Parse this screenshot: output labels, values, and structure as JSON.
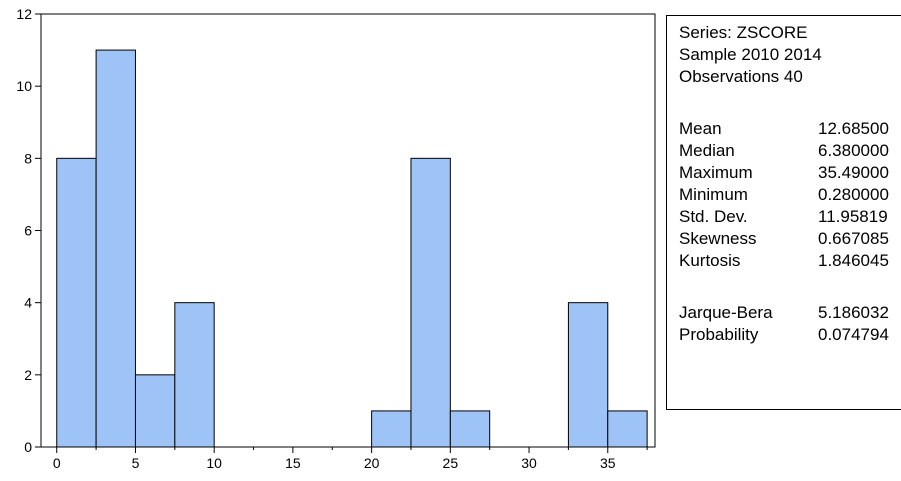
{
  "chart_data": {
    "type": "bar",
    "bin_width": 2.5,
    "bins": [
      {
        "start": 0,
        "end": 2.5,
        "count": 8
      },
      {
        "start": 2.5,
        "end": 5,
        "count": 11
      },
      {
        "start": 5,
        "end": 7.5,
        "count": 2
      },
      {
        "start": 7.5,
        "end": 10,
        "count": 4
      },
      {
        "start": 10,
        "end": 12.5,
        "count": 0
      },
      {
        "start": 12.5,
        "end": 15,
        "count": 0
      },
      {
        "start": 15,
        "end": 17.5,
        "count": 0
      },
      {
        "start": 17.5,
        "end": 20,
        "count": 0
      },
      {
        "start": 20,
        "end": 22.5,
        "count": 1
      },
      {
        "start": 22.5,
        "end": 25,
        "count": 8
      },
      {
        "start": 25,
        "end": 27.5,
        "count": 1
      },
      {
        "start": 27.5,
        "end": 30,
        "count": 0
      },
      {
        "start": 30,
        "end": 32.5,
        "count": 0
      },
      {
        "start": 32.5,
        "end": 35,
        "count": 4
      },
      {
        "start": 35,
        "end": 37.5,
        "count": 1
      }
    ],
    "xlim": [
      -1,
      38
    ],
    "ylim": [
      0,
      12
    ],
    "x_ticks": [
      0,
      5,
      10,
      15,
      20,
      25,
      30,
      35
    ],
    "y_ticks": [
      0,
      2,
      4,
      6,
      8,
      10,
      12
    ],
    "bar_color": "#9ec3f7",
    "bar_edge_color": "#000000",
    "grid": false
  },
  "stats": {
    "header": [
      "Series: ZSCORE",
      "Sample 2010 2014",
      "Observations 40"
    ],
    "rows": [
      {
        "name": "Mean",
        "value": "12.68500"
      },
      {
        "name": "Median",
        "value": "6.380000"
      },
      {
        "name": "Maximum",
        "value": "35.49000"
      },
      {
        "name": "Minimum",
        "value": "0.280000"
      },
      {
        "name": "Std. Dev.",
        "value": "11.95819"
      },
      {
        "name": "Skewness",
        "value": "0.667085"
      },
      {
        "name": "Kurtosis",
        "value": "1.846045"
      }
    ],
    "test_rows": [
      {
        "name": "Jarque-Bera",
        "value": "5.186032"
      },
      {
        "name": "Probability",
        "value": "0.074794"
      }
    ]
  }
}
